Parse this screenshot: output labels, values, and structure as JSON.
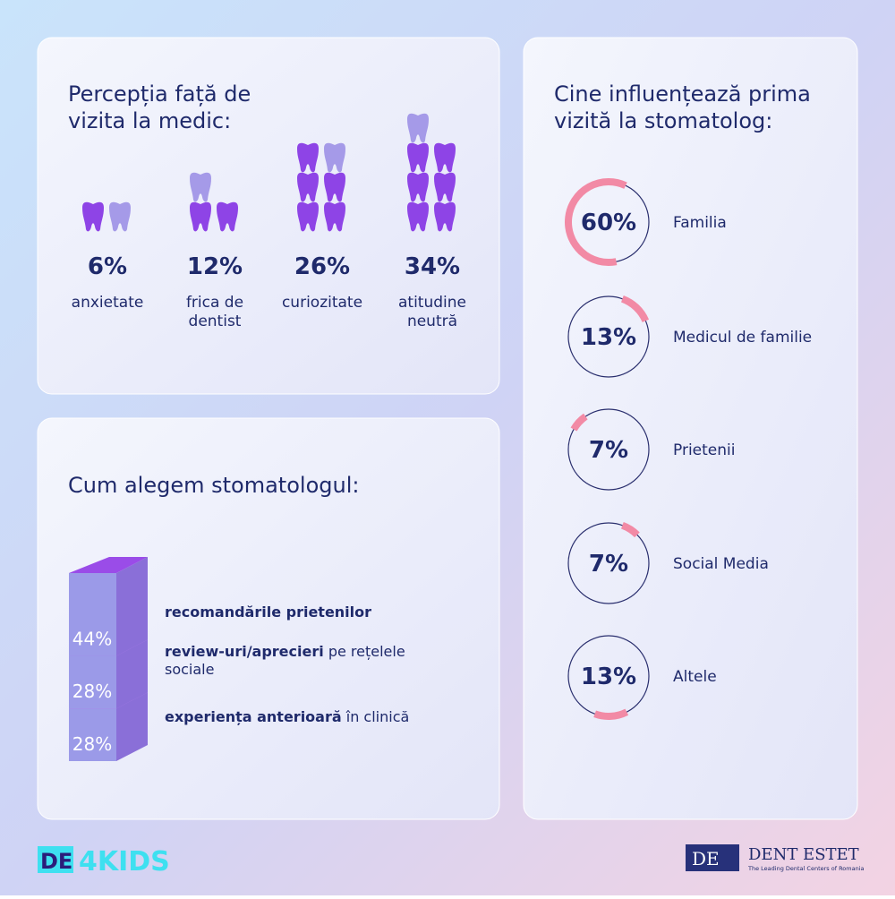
{
  "perception": {
    "title_lines": [
      "Percepția față de",
      "vizita la medic:"
    ],
    "items": [
      {
        "value": 6,
        "label": "6%",
        "text_lines": [
          "anxietate"
        ]
      },
      {
        "value": 12,
        "label": "12%",
        "text_lines": [
          "frica de",
          "dentist"
        ]
      },
      {
        "value": 26,
        "label": "26%",
        "text_lines": [
          "curiozitate"
        ]
      },
      {
        "value": 34,
        "label": "34%",
        "text_lines": [
          "atitudine",
          "neutră"
        ]
      }
    ]
  },
  "choice": {
    "title": "Cum alegem stomatologul:",
    "items": [
      {
        "value": 44,
        "label": "44%",
        "bold": "recomandările prietenilor",
        "rest_lines": []
      },
      {
        "value": 28,
        "label": "28%",
        "bold": "review-uri/aprecieri",
        "rest_lines": [
          " pe rețelele",
          "sociale"
        ]
      },
      {
        "value": 28,
        "label": "28%",
        "bold": "experiența anterioară",
        "rest_lines": [
          " în clinică"
        ]
      }
    ]
  },
  "influence": {
    "title_lines": [
      "Cine influențează prima",
      "vizită la stomatolog:"
    ],
    "items": [
      {
        "value": 60,
        "label": "60%",
        "name": "Familia"
      },
      {
        "value": 13,
        "label": "13%",
        "name": "Medicul de familie"
      },
      {
        "value": 7,
        "label": "7%",
        "name": "Prietenii"
      },
      {
        "value": 7,
        "label": "7%",
        "name": "Social Media"
      },
      {
        "value": 13,
        "label": "13%",
        "name": "Altele"
      }
    ]
  },
  "footer": {
    "left_logo_a": "DE",
    "left_logo_b": "4KIDS",
    "right_logo_mark": "DE",
    "right_logo_name": "DENT ESTET",
    "right_logo_tagline": "The Leading Dental Centers of Romania"
  }
}
